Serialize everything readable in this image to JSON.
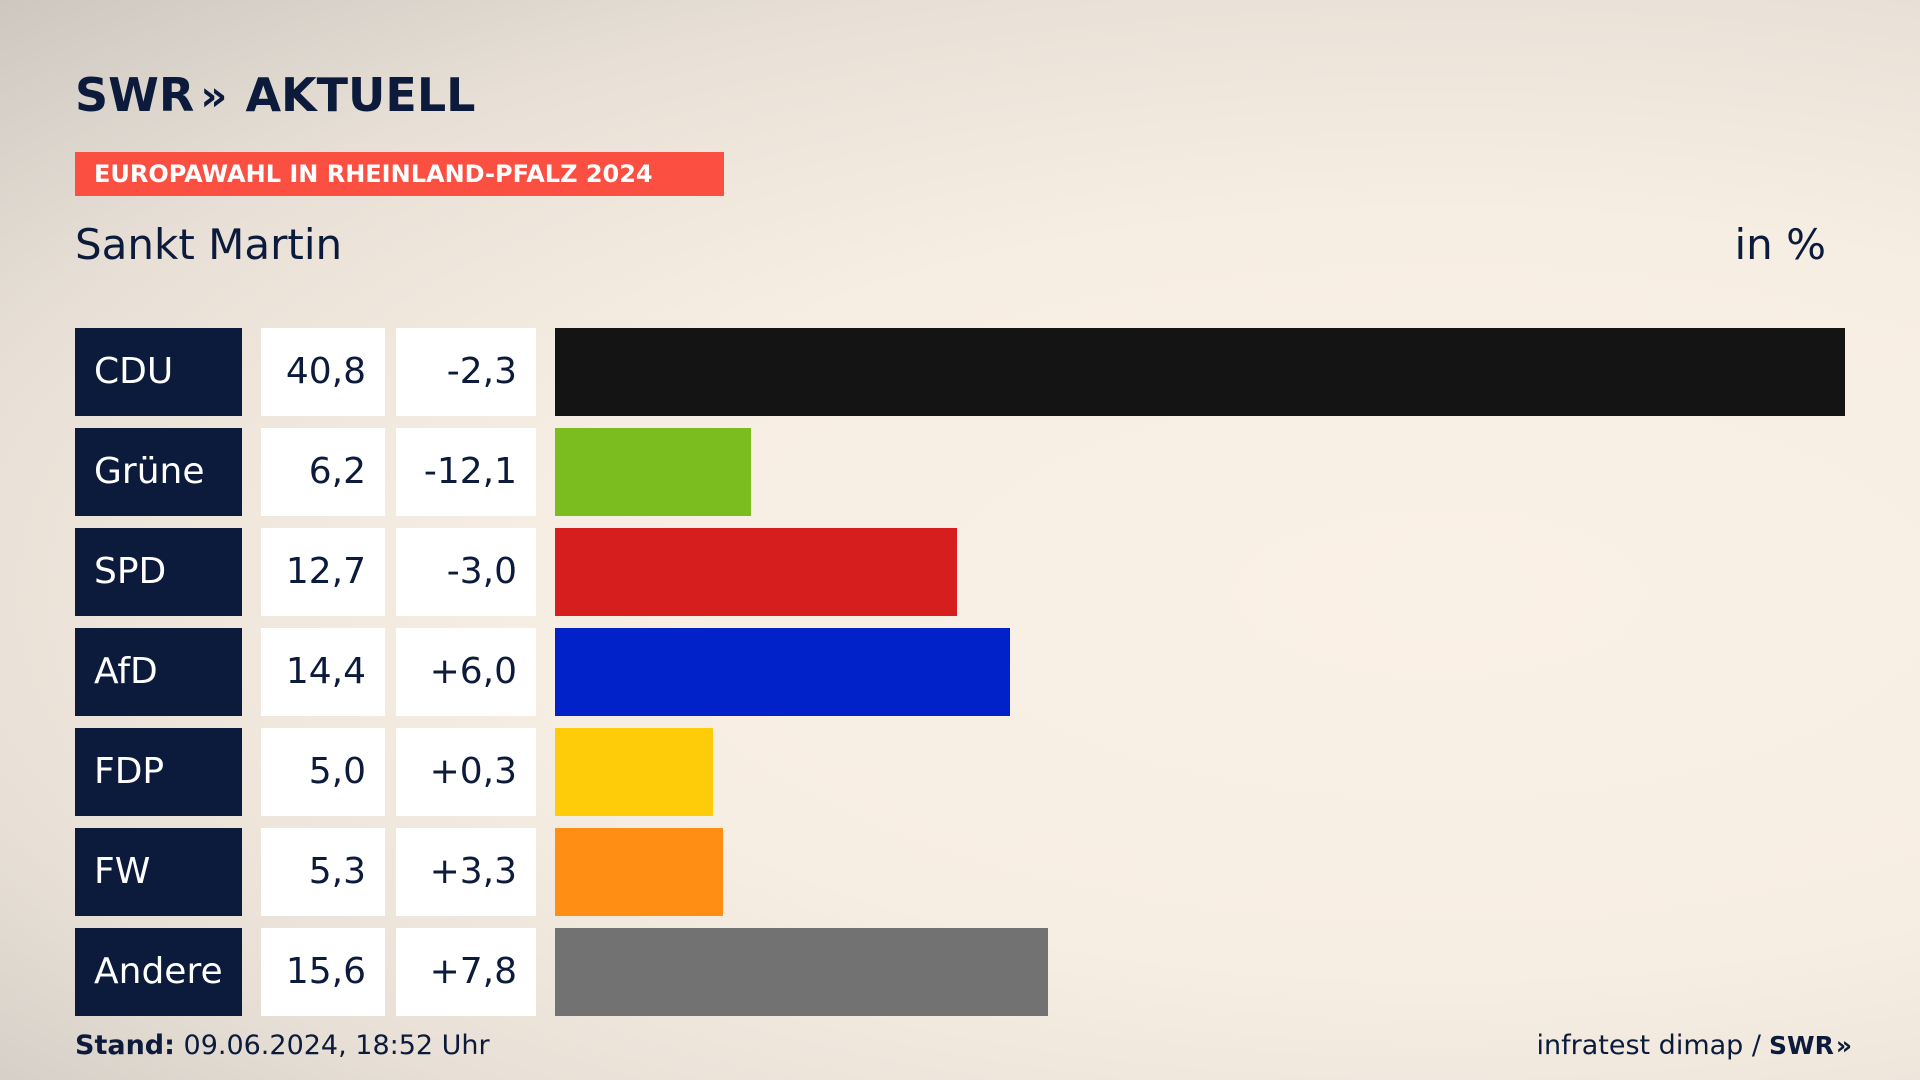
{
  "header": {
    "logo_main": "SWR",
    "logo_arrows": "»",
    "logo_secondary": "AKTUELL",
    "banner": "EUROPAWAHL IN RHEINLAND-PFALZ 2024",
    "place": "Sankt Martin",
    "unit": "in %"
  },
  "chart_data": {
    "type": "bar",
    "orientation": "horizontal",
    "categories": [
      "CDU",
      "Grüne",
      "SPD",
      "AfD",
      "FDP",
      "FW",
      "Andere"
    ],
    "values": [
      40.8,
      6.2,
      12.7,
      14.4,
      5.0,
      5.3,
      15.6
    ],
    "value_labels": [
      "40,8",
      "6,2",
      "12,7",
      "14,4",
      "5,0",
      "5,3",
      "15,6"
    ],
    "diff_labels": [
      "-2,3",
      "-12,1",
      "-3,0",
      "+6,0",
      "+0,3",
      "+3,3",
      "+7,8"
    ],
    "colors": [
      "#141414",
      "#7bbd1e",
      "#d61e1e",
      "#0022c8",
      "#ffcc0a",
      "#fe8f14",
      "#727273"
    ],
    "xlim": [
      0,
      40.8
    ],
    "title": "Sankt Martin",
    "unit": "in %"
  },
  "footer": {
    "stand_label": "Stand:",
    "stand_value": "09.06.2024, 18:52 Uhr",
    "source": "infratest dimap /",
    "source_logo": "SWR",
    "source_logo_arrows": "»"
  }
}
